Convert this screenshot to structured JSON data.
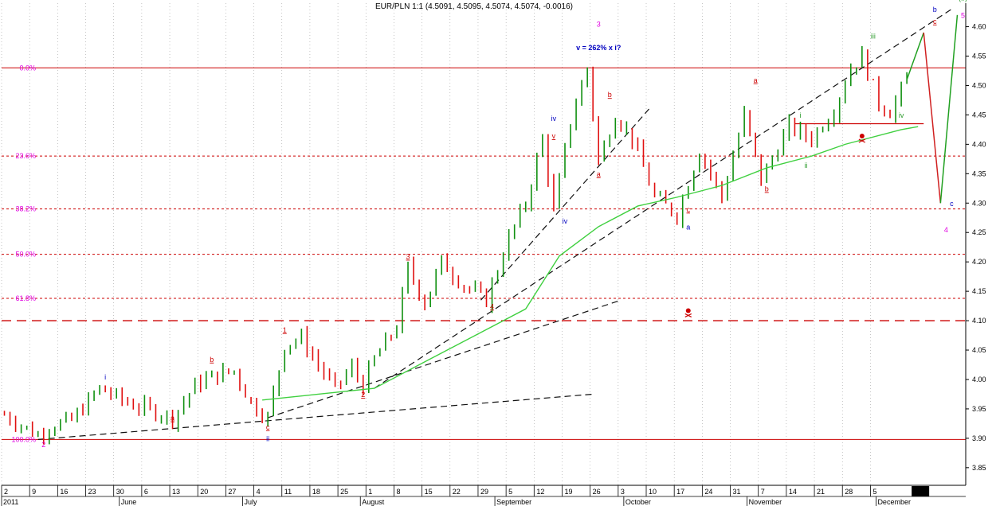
{
  "chart_data": {
    "type": "candlestick",
    "title": "EUR/PLN 1:1 (4.5091, 4.5095, 4.5074, 4.5074, -0.0016)",
    "ylim": [
      3.82,
      4.64
    ],
    "y_ticks": [
      "4.60",
      "4.55",
      "4.50",
      "4.45",
      "4.40",
      "4.35",
      "4.30",
      "4.25",
      "4.20",
      "4.15",
      "4.10",
      "4.05",
      "4.00",
      "3.95",
      "3.90",
      "3.85"
    ],
    "y_tick_values": [
      4.6,
      4.55,
      4.5,
      4.45,
      4.4,
      4.35,
      4.3,
      4.25,
      4.2,
      4.15,
      4.1,
      4.05,
      4.0,
      3.95,
      3.9,
      3.85
    ],
    "x_day_labels": [
      {
        "i": 0,
        "t": "2"
      },
      {
        "i": 5,
        "t": "9"
      },
      {
        "i": 10,
        "t": "16"
      },
      {
        "i": 15,
        "t": "23"
      },
      {
        "i": 20,
        "t": "30"
      },
      {
        "i": 25,
        "t": "6"
      },
      {
        "i": 30,
        "t": "13"
      },
      {
        "i": 35,
        "t": "20"
      },
      {
        "i": 40,
        "t": "27"
      },
      {
        "i": 45,
        "t": "4"
      },
      {
        "i": 50,
        "t": "11"
      },
      {
        "i": 55,
        "t": "18"
      },
      {
        "i": 60,
        "t": "25"
      },
      {
        "i": 65,
        "t": "1"
      },
      {
        "i": 70,
        "t": "8"
      },
      {
        "i": 75,
        "t": "15"
      },
      {
        "i": 80,
        "t": "22"
      },
      {
        "i": 85,
        "t": "29"
      },
      {
        "i": 90,
        "t": "5"
      },
      {
        "i": 95,
        "t": "12"
      },
      {
        "i": 100,
        "t": "19"
      },
      {
        "i": 105,
        "t": "26"
      },
      {
        "i": 110,
        "t": "3"
      },
      {
        "i": 115,
        "t": "10"
      },
      {
        "i": 120,
        "t": "17"
      },
      {
        "i": 125,
        "t": "24"
      },
      {
        "i": 130,
        "t": "31"
      },
      {
        "i": 135,
        "t": "7"
      },
      {
        "i": 140,
        "t": "14"
      },
      {
        "i": 145,
        "t": "21"
      },
      {
        "i": 150,
        "t": "28"
      },
      {
        "i": 155,
        "t": "5"
      }
    ],
    "x_month_labels": [
      {
        "i": 0,
        "t": "2011"
      },
      {
        "i": 21,
        "t": "June"
      },
      {
        "i": 43,
        "t": "July"
      },
      {
        "i": 64,
        "t": "August"
      },
      {
        "i": 88,
        "t": "September"
      },
      {
        "i": 111,
        "t": "October"
      },
      {
        "i": 133,
        "t": "November"
      },
      {
        "i": 156,
        "t": "December"
      }
    ],
    "fib_levels": [
      {
        "label": "0.0%",
        "value": 4.53
      },
      {
        "label": "23.6%",
        "value": 4.38
      },
      {
        "label": "38.2%",
        "value": 4.29
      },
      {
        "label": "50.0%",
        "value": 4.213
      },
      {
        "label": "61.8%",
        "value": 4.138
      },
      {
        "label": "100.0%",
        "value": 3.898
      }
    ],
    "support_line": 4.1,
    "price_path": [
      [
        0,
        3.94
      ],
      [
        6,
        3.905
      ],
      [
        8,
        3.92
      ],
      [
        12,
        3.93
      ],
      [
        17,
        3.985
      ],
      [
        22,
        3.96
      ],
      [
        27,
        3.945
      ],
      [
        30,
        3.935
      ],
      [
        34,
        3.99
      ],
      [
        37,
        4.005
      ],
      [
        41,
        4.015
      ],
      [
        44,
        3.96
      ],
      [
        47,
        3.935
      ],
      [
        50,
        4.06
      ],
      [
        53,
        4.07
      ],
      [
        57,
        4.01
      ],
      [
        59,
        3.985
      ],
      [
        62,
        4.02
      ],
      [
        64,
        3.99
      ],
      [
        66,
        4.035
      ],
      [
        70,
        4.09
      ],
      [
        72,
        4.19
      ],
      [
        75,
        4.13
      ],
      [
        78,
        4.2
      ],
      [
        82,
        4.16
      ],
      [
        86,
        4.135
      ],
      [
        90,
        4.24
      ],
      [
        93,
        4.3
      ],
      [
        96,
        4.41
      ],
      [
        98,
        4.285
      ],
      [
        101,
        4.44
      ],
      [
        104,
        4.53
      ],
      [
        106,
        4.37
      ],
      [
        109,
        4.45
      ],
      [
        112,
        4.41
      ],
      [
        116,
        4.31
      ],
      [
        120,
        4.28
      ],
      [
        124,
        4.39
      ],
      [
        128,
        4.31
      ],
      [
        132,
        4.45
      ],
      [
        135,
        4.34
      ],
      [
        140,
        4.43
      ],
      [
        144,
        4.41
      ],
      [
        148,
        4.46
      ],
      [
        151,
        4.53
      ],
      [
        153,
        4.55
      ],
      [
        156,
        4.47
      ],
      [
        158,
        4.455
      ],
      [
        161,
        4.51
      ]
    ],
    "moving_average": [
      [
        46,
        3.965
      ],
      [
        56,
        3.975
      ],
      [
        66,
        3.985
      ],
      [
        75,
        4.03
      ],
      [
        85,
        4.08
      ],
      [
        93,
        4.12
      ],
      [
        99,
        4.21
      ],
      [
        106,
        4.26
      ],
      [
        113,
        4.295
      ],
      [
        120,
        4.31
      ],
      [
        128,
        4.33
      ],
      [
        136,
        4.36
      ],
      [
        144,
        4.38
      ],
      [
        150,
        4.4
      ],
      [
        160,
        4.425
      ],
      [
        163,
        4.43
      ]
    ],
    "projection": [
      [
        161,
        4.51
      ],
      [
        164,
        4.59
      ],
      [
        167,
        4.3
      ],
      [
        170,
        4.62
      ]
    ],
    "trend_lines": [
      {
        "from": [
          6,
          3.898
        ],
        "to": [
          105,
          3.975
        ]
      },
      {
        "from": [
          47,
          3.935
        ],
        "to": [
          110,
          4.135
        ]
      },
      {
        "from": [
          66,
          3.985
        ],
        "to": [
          169,
          4.63
        ]
      },
      {
        "from": [
          85,
          4.135
        ],
        "to": [
          115,
          4.46
        ]
      }
    ],
    "resistance_segment": {
      "from": 141,
      "to": 164,
      "value": 4.435
    },
    "annotations": [
      {
        "i": 7,
        "v": 3.885,
        "t": "2",
        "color": "#e000e0"
      },
      {
        "i": 18,
        "v": 4.0,
        "t": "i",
        "color": "#0000c0"
      },
      {
        "i": 30,
        "v": 3.93,
        "t": "a",
        "color": "#cc0000",
        "u": true
      },
      {
        "i": 37,
        "v": 4.03,
        "t": "b",
        "color": "#cc0000",
        "u": true
      },
      {
        "i": 47,
        "v": 3.915,
        "t": "c",
        "color": "#cc0000",
        "u": true
      },
      {
        "i": 47,
        "v": 3.895,
        "t": "ii",
        "color": "#0000c0"
      },
      {
        "i": 50,
        "v": 4.08,
        "t": "1",
        "color": "#cc0000",
        "u": true
      },
      {
        "i": 64,
        "v": 3.97,
        "t": "2",
        "color": "#cc0000",
        "u": true
      },
      {
        "i": 72,
        "v": 4.205,
        "t": "3",
        "color": "#cc0000",
        "u": true
      },
      {
        "i": 87,
        "v": 4.12,
        "t": "4",
        "color": "#cc0000",
        "u": true
      },
      {
        "i": 98,
        "v": 4.44,
        "t": "iv",
        "color": "#0000c0"
      },
      {
        "i": 98,
        "v": 4.41,
        "t": "v",
        "color": "#cc0000",
        "u": true
      },
      {
        "i": 100,
        "v": 4.265,
        "t": "iv",
        "color": "#0000c0"
      },
      {
        "i": 106,
        "v": 4.56,
        "t": "v = 262% x i?",
        "color": "#0000c0",
        "bold": true
      },
      {
        "i": 106,
        "v": 4.6,
        "t": "3",
        "color": "#e000e0"
      },
      {
        "i": 108,
        "v": 4.48,
        "t": "b",
        "color": "#cc0000",
        "u": true
      },
      {
        "i": 106,
        "v": 4.345,
        "t": "a",
        "color": "#cc0000",
        "u": true
      },
      {
        "i": 122,
        "v": 4.285,
        "t": "c",
        "color": "#cc0000",
        "u": true
      },
      {
        "i": 122,
        "v": 4.255,
        "t": "a",
        "color": "#0000c0"
      },
      {
        "i": 134,
        "v": 4.505,
        "t": "a",
        "color": "#cc0000",
        "u": true
      },
      {
        "i": 136,
        "v": 4.32,
        "t": "b",
        "color": "#cc0000",
        "u": true
      },
      {
        "i": 142,
        "v": 4.445,
        "t": "i",
        "color": "#2a9a2a"
      },
      {
        "i": 143,
        "v": 4.36,
        "t": "ii",
        "color": "#2a9a2a"
      },
      {
        "i": 155,
        "v": 4.58,
        "t": "iii",
        "color": "#2a9a2a"
      },
      {
        "i": 160,
        "v": 4.445,
        "t": "iv",
        "color": "#2a9a2a"
      },
      {
        "i": 166,
        "v": 4.605,
        "t": "c",
        "color": "#cc0000",
        "u": true
      },
      {
        "i": 166,
        "v": 4.625,
        "t": "b",
        "color": "#0000c0"
      },
      {
        "i": 171,
        "v": 4.645,
        "t": "(b)",
        "color": "#2a9a2a"
      },
      {
        "i": 171,
        "v": 4.615,
        "t": "5",
        "color": "#e000e0"
      },
      {
        "i": 169,
        "v": 4.295,
        "t": "c",
        "color": "#0000c0"
      },
      {
        "i": 168,
        "v": 4.25,
        "t": "4",
        "color": "#e000e0"
      }
    ],
    "skull_markers": [
      {
        "i": 122,
        "v": 4.113
      },
      {
        "i": 153,
        "v": 4.41
      }
    ],
    "colors": {
      "up": "#109010",
      "down": "#e01010",
      "ma": "#40d040",
      "fib": "#cc0000",
      "trend": "#111111",
      "projection_up": "#20a020",
      "projection_down": "#d02020",
      "grid": "#a0a0a0"
    }
  }
}
